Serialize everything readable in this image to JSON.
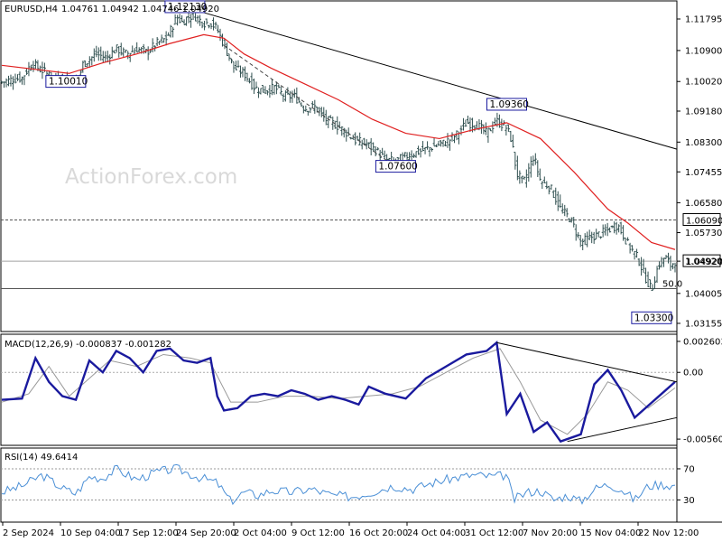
{
  "header": {
    "symbol": "EURUSD,H4",
    "ohlc": "1.04761 1.04942 1.04746 1.04920"
  },
  "watermark": "ActionForex.com",
  "colors": {
    "candles": "#2f4f4f",
    "sma": "#e02020",
    "macd_main": "#1a1a9e",
    "macd_signal": "#999999",
    "rsi": "#4a8fd6",
    "trendline": "#000000",
    "box_border": "#1a1a9e"
  },
  "chart_data": [
    {
      "type": "line",
      "panel": "price",
      "title": "EURUSD,H4",
      "y_ticks": [
        "1.11795",
        "1.10900",
        "1.10020",
        "1.09180",
        "1.08300",
        "1.07455",
        "1.06580",
        "1.05730",
        "1.04920",
        "1.04005",
        "1.03155"
      ],
      "ylim": [
        1.03,
        1.1218
      ],
      "close_path": [
        [
          0,
          1.1
        ],
        [
          0.015,
          1.1008
        ],
        [
          0.03,
          1.1012
        ],
        [
          0.045,
          1.1055
        ],
        [
          0.055,
          1.1038
        ],
        [
          0.065,
          1.1028
        ],
        [
          0.075,
          1.1005
        ],
        [
          0.085,
          1.1012
        ],
        [
          0.1,
          1.1002
        ],
        [
          0.115,
          1.1015
        ],
        [
          0.12,
          1.105
        ],
        [
          0.14,
          1.108
        ],
        [
          0.155,
          1.107
        ],
        [
          0.17,
          1.1095
        ],
        [
          0.185,
          1.108
        ],
        [
          0.2,
          1.1095
        ],
        [
          0.215,
          1.1085
        ],
        [
          0.23,
          1.111
        ],
        [
          0.245,
          1.1125
        ],
        [
          0.26,
          1.1185
        ],
        [
          0.268,
          1.117
        ],
        [
          0.275,
          1.1183
        ],
        [
          0.285,
          1.119
        ],
        [
          0.3,
          1.1168
        ],
        [
          0.31,
          1.117
        ],
        [
          0.32,
          1.115
        ],
        [
          0.33,
          1.1105
        ],
        [
          0.345,
          1.104
        ],
        [
          0.36,
          1.1025
        ],
        [
          0.375,
          1.0985
        ],
        [
          0.39,
          1.0975
        ],
        [
          0.405,
          1.0985
        ],
        [
          0.42,
          1.096
        ],
        [
          0.435,
          1.096
        ],
        [
          0.45,
          1.0925
        ],
        [
          0.465,
          1.093
        ],
        [
          0.48,
          1.0895
        ],
        [
          0.495,
          1.088
        ],
        [
          0.51,
          1.086
        ],
        [
          0.525,
          1.0835
        ],
        [
          0.54,
          1.0825
        ],
        [
          0.555,
          1.0808
        ],
        [
          0.57,
          1.078
        ],
        [
          0.585,
          1.0775
        ],
        [
          0.6,
          1.079
        ],
        [
          0.615,
          1.08
        ],
        [
          0.63,
          1.081
        ],
        [
          0.645,
          1.082
        ],
        [
          0.66,
          1.083
        ],
        [
          0.675,
          1.085
        ],
        [
          0.69,
          1.0885
        ],
        [
          0.705,
          1.088
        ],
        [
          0.72,
          1.0855
        ],
        [
          0.735,
          1.089
        ],
        [
          0.75,
          1.087
        ],
        [
          0.757,
          1.0835
        ],
        [
          0.765,
          1.074
        ],
        [
          0.775,
          1.0715
        ],
        [
          0.79,
          1.079
        ],
        [
          0.8,
          1.072
        ],
        [
          0.815,
          1.07
        ],
        [
          0.83,
          1.064
        ],
        [
          0.845,
          1.061
        ],
        [
          0.86,
          1.0545
        ],
        [
          0.875,
          1.056
        ],
        [
          0.89,
          1.057
        ],
        [
          0.9,
          1.058
        ],
        [
          0.915,
          1.0595
        ],
        [
          0.93,
          1.054
        ],
        [
          0.945,
          1.05
        ],
        [
          0.955,
          1.045
        ],
        [
          0.965,
          1.041
        ],
        [
          0.975,
          1.048
        ],
        [
          0.985,
          1.0505
        ],
        [
          0.993,
          1.048
        ],
        [
          1.0,
          1.0492
        ]
      ],
      "sma_path": [
        [
          0,
          1.1048
        ],
        [
          0.1,
          1.1025
        ],
        [
          0.15,
          1.1055
        ],
        [
          0.2,
          1.108
        ],
        [
          0.25,
          1.111
        ],
        [
          0.3,
          1.1135
        ],
        [
          0.33,
          1.1125
        ],
        [
          0.36,
          1.108
        ],
        [
          0.4,
          1.104
        ],
        [
          0.45,
          1.0995
        ],
        [
          0.5,
          1.095
        ],
        [
          0.55,
          1.0895
        ],
        [
          0.6,
          1.0855
        ],
        [
          0.65,
          1.084
        ],
        [
          0.7,
          1.0865
        ],
        [
          0.75,
          1.0885
        ],
        [
          0.8,
          1.084
        ],
        [
          0.85,
          1.0745
        ],
        [
          0.9,
          1.064
        ],
        [
          0.93,
          1.06
        ],
        [
          0.965,
          1.0545
        ],
        [
          1.0,
          1.0525
        ]
      ],
      "annotations": [
        {
          "text": "1.12130",
          "x": 0.272,
          "y": 1.1213
        },
        {
          "text": "1.10010",
          "x": 0.095,
          "y": 1.1001
        },
        {
          "text": "1.07600",
          "x": 0.585,
          "y": 1.076
        },
        {
          "text": "1.09360",
          "x": 0.75,
          "y": 1.0936
        },
        {
          "text": "1.03300",
          "x": 0.965,
          "y": 1.033
        }
      ],
      "levels": [
        {
          "value": 1.0609,
          "label": "1.06090",
          "style": "dashed"
        },
        {
          "value": 1.0492,
          "label": "1.04920",
          "style": "solid-gray"
        },
        {
          "value": 1.0414,
          "label": "50.0",
          "style": "solid"
        }
      ]
    },
    {
      "type": "line",
      "panel": "macd",
      "title": "MACD(12,26,9) -0.000837 -0.001282",
      "y_ticks": [
        "0.002603",
        "0.00",
        "-0.005604"
      ],
      "ylim": [
        -0.0059,
        0.0029
      ],
      "series": [
        {
          "values": [
            [
              0,
              -0.0023
            ],
            [
              0.03,
              -0.0022
            ],
            [
              0.05,
              0.0012
            ],
            [
              0.07,
              -0.0008
            ],
            [
              0.09,
              -0.002
            ],
            [
              0.11,
              -0.0023
            ],
            [
              0.13,
              0.001
            ],
            [
              0.15,
              0.0
            ],
            [
              0.17,
              0.0018
            ],
            [
              0.19,
              0.0012
            ],
            [
              0.21,
              0.0
            ],
            [
              0.23,
              0.0018
            ],
            [
              0.25,
              0.002
            ],
            [
              0.27,
              0.001
            ],
            [
              0.29,
              0.0008
            ],
            [
              0.31,
              0.0012
            ],
            [
              0.32,
              -0.002
            ],
            [
              0.33,
              -0.0032
            ],
            [
              0.35,
              -0.003
            ],
            [
              0.37,
              -0.002
            ],
            [
              0.39,
              -0.0018
            ],
            [
              0.41,
              -0.002
            ],
            [
              0.43,
              -0.0015
            ],
            [
              0.45,
              -0.0018
            ],
            [
              0.47,
              -0.0023
            ],
            [
              0.49,
              -0.002
            ],
            [
              0.51,
              -0.0023
            ],
            [
              0.53,
              -0.0027
            ],
            [
              0.545,
              -0.0012
            ],
            [
              0.57,
              -0.0018
            ],
            [
              0.6,
              -0.0022
            ],
            [
              0.63,
              -0.0005
            ],
            [
              0.66,
              0.0005
            ],
            [
              0.69,
              0.0015
            ],
            [
              0.72,
              0.0018
            ],
            [
              0.735,
              0.0025
            ],
            [
              0.75,
              -0.0035
            ],
            [
              0.77,
              -0.0018
            ],
            [
              0.79,
              -0.005
            ],
            [
              0.81,
              -0.0042
            ],
            [
              0.83,
              -0.0058
            ],
            [
              0.86,
              -0.0052
            ],
            [
              0.88,
              -0.001
            ],
            [
              0.9,
              0.0002
            ],
            [
              0.92,
              -0.0015
            ],
            [
              0.94,
              -0.0038
            ],
            [
              0.96,
              -0.0028
            ],
            [
              0.98,
              -0.0018
            ],
            [
              1.0,
              -0.0008
            ]
          ]
        },
        {
          "values": [
            [
              0,
              -0.0025
            ],
            [
              0.04,
              -0.0018
            ],
            [
              0.07,
              0.0005
            ],
            [
              0.1,
              -0.002
            ],
            [
              0.13,
              -0.0005
            ],
            [
              0.16,
              0.001
            ],
            [
              0.2,
              0.0005
            ],
            [
              0.24,
              0.0015
            ],
            [
              0.28,
              0.0012
            ],
            [
              0.31,
              0.0008
            ],
            [
              0.34,
              -0.0025
            ],
            [
              0.38,
              -0.0025
            ],
            [
              0.42,
              -0.002
            ],
            [
              0.46,
              -0.002
            ],
            [
              0.5,
              -0.0022
            ],
            [
              0.54,
              -0.002
            ],
            [
              0.58,
              -0.0018
            ],
            [
              0.62,
              -0.0012
            ],
            [
              0.66,
              0.0
            ],
            [
              0.7,
              0.0012
            ],
            [
              0.74,
              0.002
            ],
            [
              0.77,
              -0.0008
            ],
            [
              0.8,
              -0.004
            ],
            [
              0.84,
              -0.0052
            ],
            [
              0.87,
              -0.0035
            ],
            [
              0.9,
              -0.0008
            ],
            [
              0.93,
              -0.0015
            ],
            [
              0.96,
              -0.003
            ],
            [
              1.0,
              -0.0013
            ]
          ]
        }
      ]
    },
    {
      "type": "line",
      "panel": "rsi",
      "title": "RSI(14) 49.6414",
      "y_ticks": [
        "70",
        "30"
      ],
      "ylim": [
        5,
        92
      ],
      "levels": [
        70,
        30
      ],
      "series": [
        {
          "values": [
            [
              0,
              40
            ],
            [
              0.03,
              48
            ],
            [
              0.06,
              62
            ],
            [
              0.09,
              45
            ],
            [
              0.11,
              38
            ],
            [
              0.13,
              60
            ],
            [
              0.15,
              58
            ],
            [
              0.17,
              70
            ],
            [
              0.2,
              56
            ],
            [
              0.23,
              66
            ],
            [
              0.26,
              70
            ],
            [
              0.29,
              60
            ],
            [
              0.32,
              52
            ],
            [
              0.34,
              28
            ],
            [
              0.36,
              40
            ],
            [
              0.38,
              36
            ],
            [
              0.4,
              42
            ],
            [
              0.43,
              40
            ],
            [
              0.46,
              44
            ],
            [
              0.49,
              36
            ],
            [
              0.52,
              34
            ],
            [
              0.55,
              40
            ],
            [
              0.58,
              48
            ],
            [
              0.61,
              44
            ],
            [
              0.64,
              52
            ],
            [
              0.67,
              58
            ],
            [
              0.7,
              62
            ],
            [
              0.73,
              60
            ],
            [
              0.75,
              62
            ],
            [
              0.76,
              30
            ],
            [
              0.78,
              40
            ],
            [
              0.8,
              42
            ],
            [
              0.82,
              30
            ],
            [
              0.84,
              36
            ],
            [
              0.86,
              28
            ],
            [
              0.88,
              44
            ],
            [
              0.9,
              50
            ],
            [
              0.92,
              44
            ],
            [
              0.94,
              30
            ],
            [
              0.96,
              48
            ],
            [
              0.98,
              50
            ],
            [
              1.0,
              48
            ]
          ]
        }
      ]
    }
  ],
  "x_axis": {
    "labels": [
      "2 Sep 2024",
      "10 Sep 04:00",
      "17 Sep 12:00",
      "24 Sep 20:00",
      "2 Oct 04:00",
      "9 Oct 12:00",
      "16 Oct 20:00",
      "24 Oct 04:00",
      "31 Oct 12:00",
      "7 Nov 20:00",
      "15 Nov 04:00",
      "22 Nov 12:00"
    ]
  }
}
